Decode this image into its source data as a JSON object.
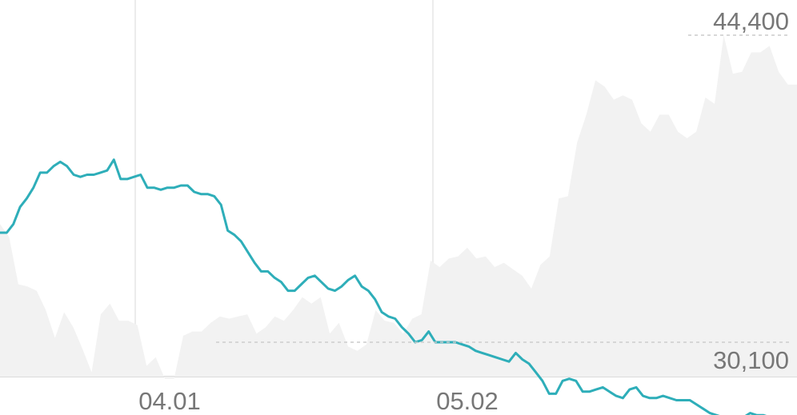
{
  "chart_data": {
    "type": "line",
    "y_extent_labels": {
      "max": "44,400",
      "min": "30,100"
    },
    "y_extent_values": {
      "max": 44400,
      "min": 30100
    },
    "x_ticks": [
      "04.01",
      "05.02"
    ],
    "x_tick_index": [
      10,
      32
    ],
    "grid": {
      "vertical": true,
      "horizontal": false
    },
    "background_area": {
      "color": "#f2f2f2",
      "values": [
        35600,
        35000,
        32800,
        32700,
        32500,
        31600,
        30300,
        31500,
        30800,
        29800,
        28700,
        31400,
        31900,
        31100,
        31100,
        30900,
        29000,
        29400,
        28400,
        28400,
        30400,
        30600,
        30600,
        31000,
        31300,
        31200,
        31300,
        31400,
        30500,
        30800,
        31300,
        31100,
        31600,
        32200,
        31900,
        32200,
        30500,
        31000,
        29900,
        29700,
        30000,
        31600,
        31100,
        31000,
        30500,
        31200,
        31400,
        33900,
        33600,
        34000,
        34100,
        34500,
        34000,
        34100,
        33600,
        33800,
        33500,
        33200,
        32600,
        33700,
        34100,
        36800,
        36900,
        39400,
        40700,
        42300,
        42000,
        41400,
        41600,
        41400,
        40300,
        39900,
        40700,
        40700,
        39900,
        39600,
        39900,
        41500,
        41200,
        44400,
        42600,
        42700,
        43600,
        43600,
        43900,
        42700,
        42100,
        42100
      ]
    },
    "series": [
      {
        "color": "#2eaeb9",
        "values": [
          35200,
          35200,
          35600,
          36400,
          36800,
          37300,
          38000,
          38000,
          38300,
          38500,
          38300,
          37900,
          37800,
          37900,
          37900,
          38000,
          38100,
          38600,
          37700,
          37700,
          37800,
          37900,
          37300,
          37300,
          37200,
          37300,
          37300,
          37400,
          37400,
          37100,
          37000,
          37000,
          36900,
          36500,
          35300,
          35100,
          34800,
          34300,
          33800,
          33400,
          33400,
          33100,
          32900,
          32500,
          32500,
          32800,
          33100,
          33200,
          32900,
          32600,
          32500,
          32700,
          33000,
          33200,
          32700,
          32500,
          32100,
          31500,
          31300,
          31200,
          30800,
          30500,
          30100,
          30200,
          30600,
          30100,
          30100,
          30100,
          30100,
          30000,
          29900,
          29700,
          29600,
          29500,
          29400,
          29300,
          29200,
          29600,
          29300,
          29100,
          28700,
          28300,
          27700,
          27700,
          28300,
          28400,
          28300,
          27800,
          27800,
          27900,
          28000,
          27800,
          27600,
          27500,
          27900,
          28000,
          27600,
          27500,
          27500,
          27600,
          27500,
          27400,
          27400,
          27400,
          27200,
          27000,
          26800,
          26700,
          26600,
          26600,
          26400,
          26600,
          26800,
          26700,
          26700,
          26600,
          26500,
          26500,
          26400,
          26500
        ]
      }
    ]
  }
}
